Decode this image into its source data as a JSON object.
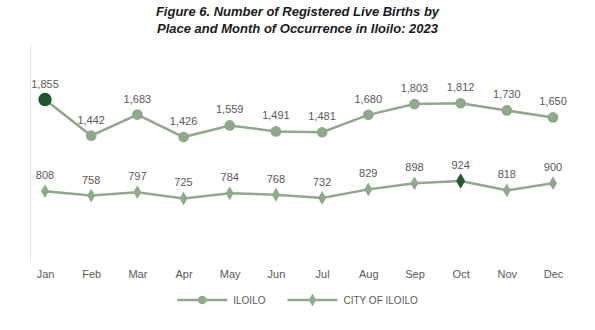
{
  "chart_data": {
    "type": "line",
    "title": "Figure 6. Number of Registered Live Births by\nPlace and Month of Occurrence in Iloilo: 2023",
    "categories": [
      "Jan",
      "Feb",
      "Mar",
      "Apr",
      "May",
      "Jun",
      "Jul",
      "Aug",
      "Sep",
      "Oct",
      "Nov",
      "Dec"
    ],
    "series": [
      {
        "name": "ILOILO",
        "color": "#8fa98a",
        "marker": "circle",
        "values": [
          1855,
          1442,
          1683,
          1426,
          1559,
          1491,
          1481,
          1680,
          1803,
          1812,
          1730,
          1650
        ]
      },
      {
        "name": "CITY OF ILOILO",
        "color": "#8fa98a",
        "marker": "diamond",
        "values": [
          808,
          758,
          797,
          725,
          784,
          768,
          732,
          829,
          898,
          924,
          818,
          900
        ]
      }
    ],
    "ylim": [
      0,
      2500
    ],
    "tick_labels": "x",
    "data_labels": true,
    "grid": false,
    "legend": "bottom"
  }
}
